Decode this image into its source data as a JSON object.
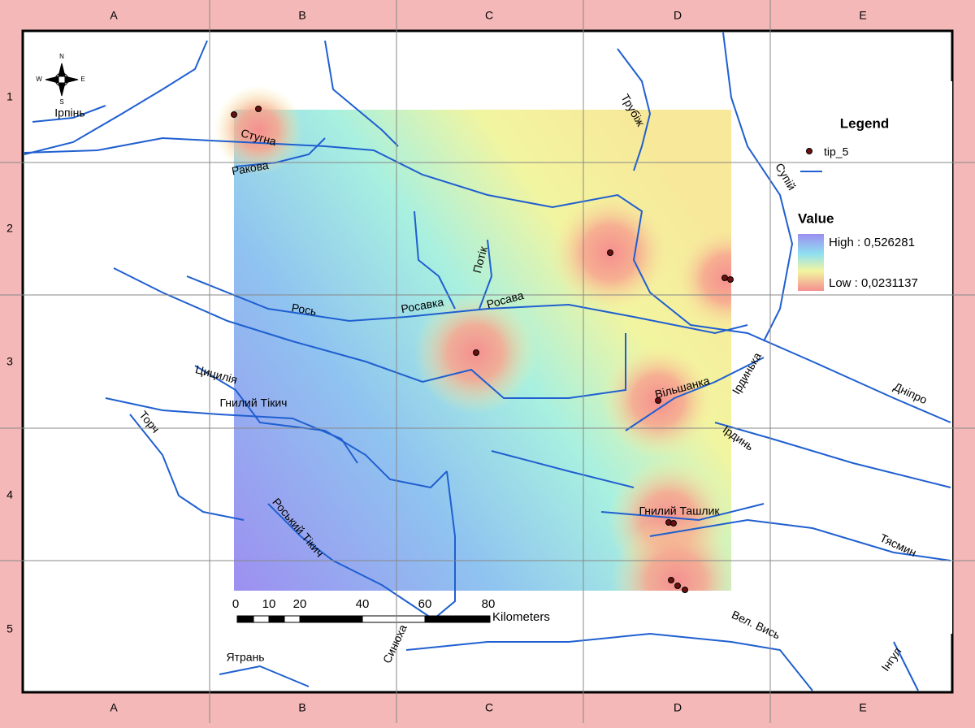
{
  "grid": {
    "columns": [
      "A",
      "B",
      "C",
      "D",
      "E"
    ],
    "rows": [
      "1",
      "2",
      "3",
      "4",
      "5"
    ]
  },
  "compass": {
    "labels": [
      "N",
      "E",
      "S",
      "W"
    ]
  },
  "legend": {
    "title": "Legend",
    "point_layer": "tip_5",
    "value_title": "Value",
    "high": "High : 0,526281",
    "low": "Low : 0,0231137"
  },
  "scale_bar": {
    "labels": [
      "0",
      "10",
      "20",
      "40",
      "60",
      "80"
    ],
    "unit": "Kilometers"
  },
  "rivers": [
    "Ірпінь",
    "Стугна",
    "Ракова",
    "Трубіж",
    "Супій",
    "Потік",
    "Росавка",
    "Росава",
    "Рось",
    "Цицилія",
    "Гнилий Тікич",
    "Торч",
    "Вільшанка",
    "Ірдинька",
    "Дніпро",
    "Ірдинь",
    "Гнилий Ташлик",
    "Тясмин",
    "Роський Тікич",
    "Вел. Вись",
    "Синюха",
    "Ятрань",
    "Інгул"
  ]
}
